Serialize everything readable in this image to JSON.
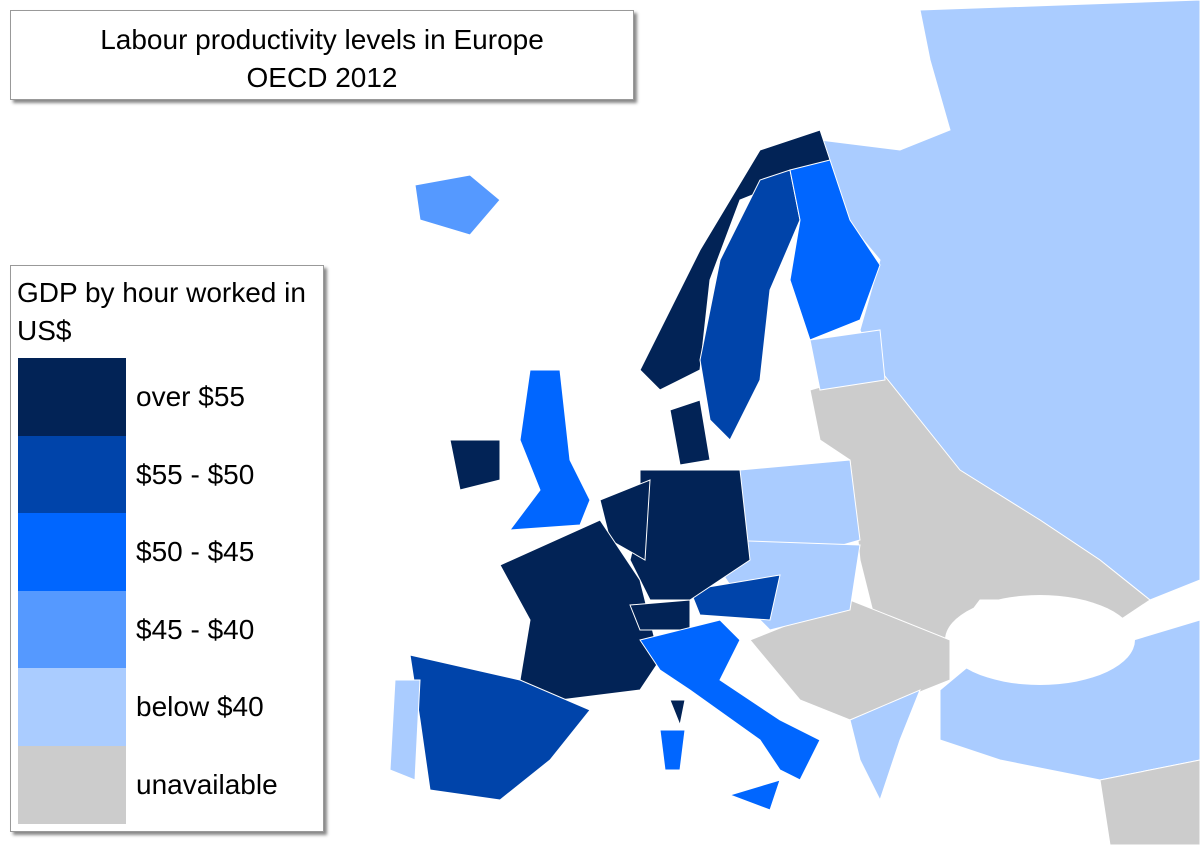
{
  "title": {
    "line1": "Labour productivity levels in Europe",
    "line2": "OECD 2012"
  },
  "legend": {
    "title": "GDP by hour worked in US$",
    "items": [
      {
        "label": "over $55",
        "color": "#022356"
      },
      {
        "label": "$55 - $50",
        "color": "#0044aa"
      },
      {
        "label": "$50 - $45",
        "color": "#0066ff"
      },
      {
        "label": "$45 - $40",
        "color": "#5599ff"
      },
      {
        "label": "below $40",
        "color": "#aaccff"
      },
      {
        "label": "unavailable",
        "color": "#cccccc"
      }
    ]
  }
}
